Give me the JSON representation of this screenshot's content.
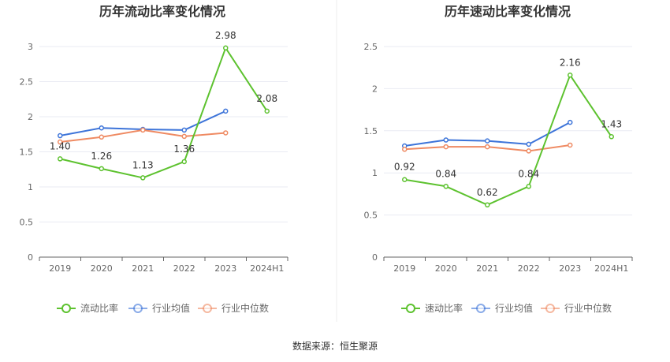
{
  "colors": {
    "company": "#5dc22f",
    "avg": "#3d74d9",
    "median": "#ef8a62",
    "grid": "#e9ebf3",
    "axis": "#666666"
  },
  "source": "数据来源：恒生聚源",
  "chart_data": [
    {
      "type": "line",
      "title": "历年流动比率变化情况",
      "categories": [
        "2019",
        "2020",
        "2021",
        "2022",
        "2023",
        "2024H1"
      ],
      "ylim": [
        0,
        3
      ],
      "yticks": [
        "0",
        "0.5",
        "1",
        "1.5",
        "2",
        "2.5",
        "3"
      ],
      "grid": true,
      "legend_position": "bottom",
      "series": [
        {
          "name": "流动比率",
          "values": [
            1.4,
            1.26,
            1.13,
            1.36,
            2.98,
            2.08
          ],
          "labels": [
            "1.40",
            "1.26",
            "1.13",
            "1.36",
            "2.98",
            "2.08"
          ]
        },
        {
          "name": "行业均值",
          "values": [
            1.73,
            1.84,
            1.82,
            1.81,
            2.08,
            null
          ]
        },
        {
          "name": "行业中位数",
          "values": [
            1.64,
            1.71,
            1.81,
            1.72,
            1.77,
            null
          ]
        }
      ]
    },
    {
      "type": "line",
      "title": "历年速动比率变化情况",
      "categories": [
        "2019",
        "2020",
        "2021",
        "2022",
        "2023",
        "2024H1"
      ],
      "ylim": [
        0,
        2.5
      ],
      "yticks": [
        "0",
        "0.5",
        "1",
        "1.5",
        "2",
        "2.5"
      ],
      "grid": true,
      "legend_position": "bottom",
      "series": [
        {
          "name": "速动比率",
          "values": [
            0.92,
            0.84,
            0.62,
            0.84,
            2.16,
            1.43
          ],
          "labels": [
            "0.92",
            "0.84",
            "0.62",
            "0.84",
            "2.16",
            "1.43"
          ]
        },
        {
          "name": "行业均值",
          "values": [
            1.32,
            1.39,
            1.38,
            1.34,
            1.6,
            null
          ]
        },
        {
          "name": "行业中位数",
          "values": [
            1.28,
            1.31,
            1.31,
            1.26,
            1.33,
            null
          ]
        }
      ]
    }
  ]
}
